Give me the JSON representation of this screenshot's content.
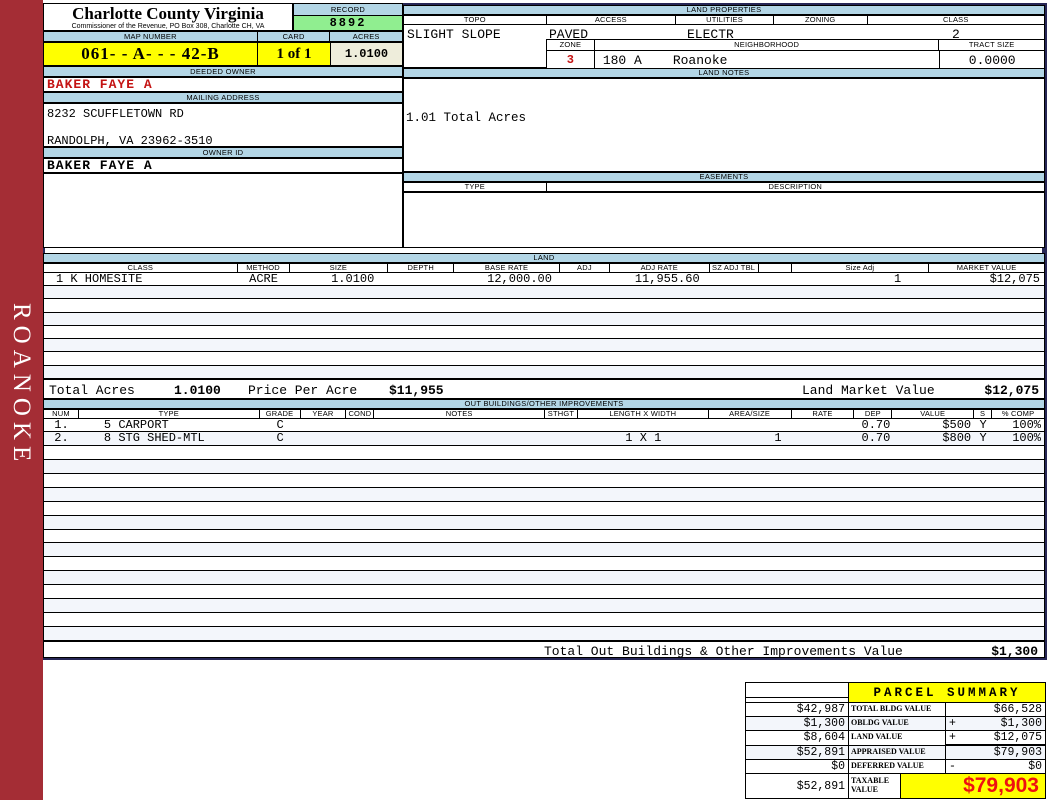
{
  "sidebar": {
    "label": "ROANOKE"
  },
  "header": {
    "county": "Charlotte County Virginia",
    "commissioner": "Commissioner of the Revenue, PO Box 308, Charlotte CH, VA",
    "record_label": "RECORD",
    "record_value": "8892",
    "map_number_label": "MAP NUMBER",
    "map_number": "061- - A- - - 42-B",
    "card_label": "CARD",
    "card": "1 of 1",
    "acres_label": "ACRES",
    "acres": "1.0100"
  },
  "owner": {
    "deeded_owner_label": "DEEDED OWNER",
    "deeded_owner": "BAKER FAYE A",
    "mailing_address_label": "MAILING ADDRESS",
    "address_line1": "8232 SCUFFLETOWN RD",
    "address_line2": "RANDOLPH, VA 23962-3510",
    "owner_id_label": "OWNER ID",
    "owner_id": "BAKER FAYE A"
  },
  "land_properties": {
    "title": "LAND PROPERTIES",
    "topo_label": "TOPO",
    "topo": "SLIGHT SLOPE",
    "access_label": "ACCESS",
    "access": "PAVED",
    "utilities_label": "UTILITIES",
    "utilities": "ELECTR",
    "zoning_label": "ZONING",
    "zoning": "",
    "class_label": "CLASS",
    "class": "2",
    "zone_label": "ZONE",
    "zone": "3",
    "neighborhood_label": "NEIGHBORHOOD",
    "neighborhood_code": "180 A",
    "neighborhood": "Roanoke",
    "tract_size_label": "TRACT SIZE",
    "tract_size": "0.0000"
  },
  "land_notes": {
    "title": "LAND NOTES",
    "note": "1.01 Total Acres"
  },
  "easements": {
    "title": "EASEMENTS",
    "type_label": "TYPE",
    "description_label": "DESCRIPTION"
  },
  "land": {
    "title": "LAND",
    "headers": [
      "CLASS",
      "METHOD",
      "SIZE",
      "DEPTH",
      "BASE RATE",
      "ADJ",
      "ADJ RATE",
      "SZ ADJ TBL",
      "",
      "Size Adj",
      "MARKET VALUE"
    ],
    "row": {
      "class": "1 K HOMESITE",
      "method": "ACRE",
      "size": "1.0100",
      "depth": "",
      "base_rate": "12,000.00",
      "adj": "",
      "adj_rate": "11,955.60",
      "sz_adj_tbl": "",
      "blank": "",
      "size_adj": "1",
      "market_value": "$12,075"
    },
    "empty_row_count": 7,
    "total_acres_label": "Total Acres",
    "total_acres": "1.0100",
    "price_per_acre_label": "Price Per Acre",
    "price_per_acre": "$11,955",
    "land_market_value_label": "Land Market Value",
    "land_market_value": "$12,075"
  },
  "out_buildings": {
    "title": "OUT BUILDINGS/OTHER IMPROVEMENTS",
    "headers": [
      "NUM",
      "TYPE",
      "GRADE",
      "YEAR",
      "COND",
      "NOTES",
      "STHGT",
      "LENGTH X WIDTH",
      "AREA/SIZE",
      "RATE",
      "DEP",
      "VALUE",
      "S",
      "% COMP"
    ],
    "rows": [
      {
        "num": "1.",
        "type": "5 CARPORT",
        "grade": "C",
        "year": "",
        "cond": "",
        "notes": "",
        "sthgt": "",
        "length_width": "",
        "area_size": "",
        "rate": "",
        "dep": "0.70",
        "value": "$500",
        "s": "Y",
        "comp": "100%"
      },
      {
        "num": "2.",
        "type": "8 STG SHED-MTL",
        "grade": "C",
        "year": "",
        "cond": "",
        "notes": "",
        "sthgt": "",
        "length_width": "1 X 1",
        "area_size": "1",
        "rate": "",
        "dep": "0.70",
        "value": "$800",
        "s": "Y",
        "comp": "100%"
      }
    ],
    "empty_row_count": 14,
    "total_label": "Total Out Buildings & Other Improvements Value",
    "total_value": "$1,300"
  },
  "parcel_summary": {
    "title": "PARCEL SUMMARY",
    "rows": [
      {
        "left": "$42,987",
        "label": "TOTAL BLDG VALUE",
        "op": "",
        "right": "$66,528"
      },
      {
        "left": "$1,300",
        "label": "OBLDG VALUE",
        "op": "+",
        "right": "$1,300"
      },
      {
        "left": "$8,604",
        "label": "LAND VALUE",
        "op": "+",
        "right": "$12,075"
      },
      {
        "left": "$52,891",
        "label": "APPRAISED VALUE",
        "op": "",
        "right": "$79,903"
      },
      {
        "left": "$0",
        "label": "DEFERRED VALUE",
        "op": "-",
        "right": "$0"
      }
    ],
    "taxable": {
      "left": "$52,891",
      "label": "TAXABLE VALUE",
      "value": "$79,903"
    }
  },
  "colors": {
    "band_blue": "#b3d6e6",
    "highlight_yellow": "#ffff00",
    "record_green": "#90ee90",
    "acres_cream": "#eeeddb",
    "owner_red": "#c41414",
    "summary_red": "#ee1111",
    "sidebar_red": "#a42d35",
    "frame_navy": "#262655",
    "alt_row": "#f3f6fb"
  }
}
